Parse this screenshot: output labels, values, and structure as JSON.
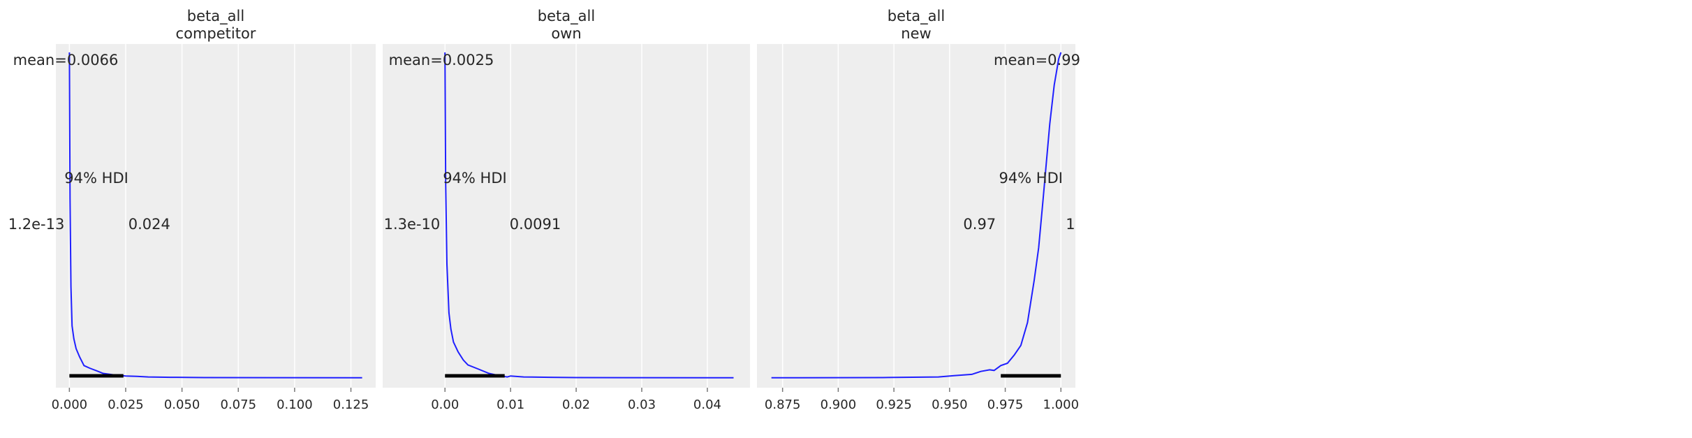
{
  "chart_data": [
    {
      "type": "line",
      "title": [
        "beta_all",
        "competitor"
      ],
      "xlim": [
        -0.006,
        0.136
      ],
      "xticks": [
        0.0,
        0.025,
        0.05,
        0.075,
        0.1,
        0.125
      ],
      "xtick_labels": [
        "0.000",
        "0.025",
        "0.050",
        "0.075",
        "0.100",
        "0.125"
      ],
      "grid": true,
      "line_color": "#1f1fff",
      "density_relative": [
        [
          0,
          1.0
        ],
        [
          0.0003,
          0.55
        ],
        [
          0.0007,
          0.28
        ],
        [
          0.0012,
          0.16
        ],
        [
          0.002,
          0.12
        ],
        [
          0.003,
          0.09
        ],
        [
          0.0045,
          0.065
        ],
        [
          0.0065,
          0.038
        ],
        [
          0.009,
          0.03
        ],
        [
          0.012,
          0.022
        ],
        [
          0.015,
          0.014
        ],
        [
          0.02,
          0.009
        ],
        [
          0.025,
          0.006
        ],
        [
          0.03,
          0.005
        ],
        [
          0.035,
          0.003
        ],
        [
          0.045,
          0.002
        ],
        [
          0.06,
          0.001
        ],
        [
          0.13,
          0.0005
        ]
      ],
      "mean_label": "mean=0.0066",
      "hdi_label": "94% HDI",
      "hdi": [
        1.2e-13,
        0.024
      ],
      "hdi_low_label": "1.2e-13",
      "hdi_high_label": "0.024"
    },
    {
      "type": "line",
      "title": [
        "beta_all",
        "own"
      ],
      "xlim": [
        -0.0095,
        0.0465
      ],
      "xticks": [
        0.0,
        0.01,
        0.02,
        0.03,
        0.04
      ],
      "xtick_labels": [
        "0.00",
        "0.01",
        "0.02",
        "0.03",
        "0.04"
      ],
      "grid": true,
      "line_color": "#1f1fff",
      "density_relative": [
        [
          0,
          1.0
        ],
        [
          0.0001,
          0.6
        ],
        [
          0.0003,
          0.35
        ],
        [
          0.0006,
          0.2
        ],
        [
          0.0009,
          0.15
        ],
        [
          0.0013,
          0.11
        ],
        [
          0.002,
          0.08
        ],
        [
          0.0028,
          0.055
        ],
        [
          0.0035,
          0.04
        ],
        [
          0.005,
          0.028
        ],
        [
          0.0067,
          0.014
        ],
        [
          0.0085,
          0.006
        ],
        [
          0.0095,
          0.003
        ],
        [
          0.01,
          0.006
        ],
        [
          0.012,
          0.003
        ],
        [
          0.016,
          0.002
        ],
        [
          0.02,
          0.001
        ],
        [
          0.044,
          0.0005
        ]
      ],
      "mean_label": "mean=0.0025",
      "hdi_label": "94% HDI",
      "hdi": [
        1.3e-10,
        0.0091
      ],
      "hdi_low_label": "1.3e-10",
      "hdi_high_label": "0.0091"
    },
    {
      "type": "line",
      "title": [
        "beta_all",
        "new"
      ],
      "xlim": [
        0.8635,
        1.0065
      ],
      "xticks": [
        0.875,
        0.9,
        0.925,
        0.95,
        0.975,
        1.0
      ],
      "xtick_labels": [
        "0.875",
        "0.900",
        "0.925",
        "0.950",
        "0.975",
        "1.000"
      ],
      "grid": true,
      "line_color": "#1f1fff",
      "density_relative": [
        [
          0.87,
          0.0005
        ],
        [
          0.92,
          0.001
        ],
        [
          0.945,
          0.003
        ],
        [
          0.952,
          0.007
        ],
        [
          0.96,
          0.011
        ],
        [
          0.964,
          0.02
        ],
        [
          0.968,
          0.025
        ],
        [
          0.97,
          0.023
        ],
        [
          0.973,
          0.038
        ],
        [
          0.976,
          0.045
        ],
        [
          0.979,
          0.07
        ],
        [
          0.982,
          0.1
        ],
        [
          0.985,
          0.17
        ],
        [
          0.988,
          0.3
        ],
        [
          0.99,
          0.4
        ],
        [
          0.992,
          0.55
        ],
        [
          0.995,
          0.78
        ],
        [
          0.997,
          0.9
        ],
        [
          0.999,
          0.98
        ],
        [
          1.0,
          1.0
        ]
      ],
      "mean_label": "mean=0.99",
      "hdi_label": "94% HDI",
      "hdi": [
        0.973,
        1.0
      ],
      "hdi_low_label": "0.97",
      "hdi_high_label": "1"
    }
  ]
}
